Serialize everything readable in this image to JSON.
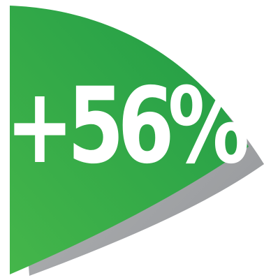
{
  "badge": {
    "value_text": "+56%",
    "colors": {
      "green_light": "#45b64a",
      "green_dark": "#1f9b46",
      "shadow": "#a7a9ac",
      "text": "#ffffff",
      "background": "#ffffff"
    }
  }
}
